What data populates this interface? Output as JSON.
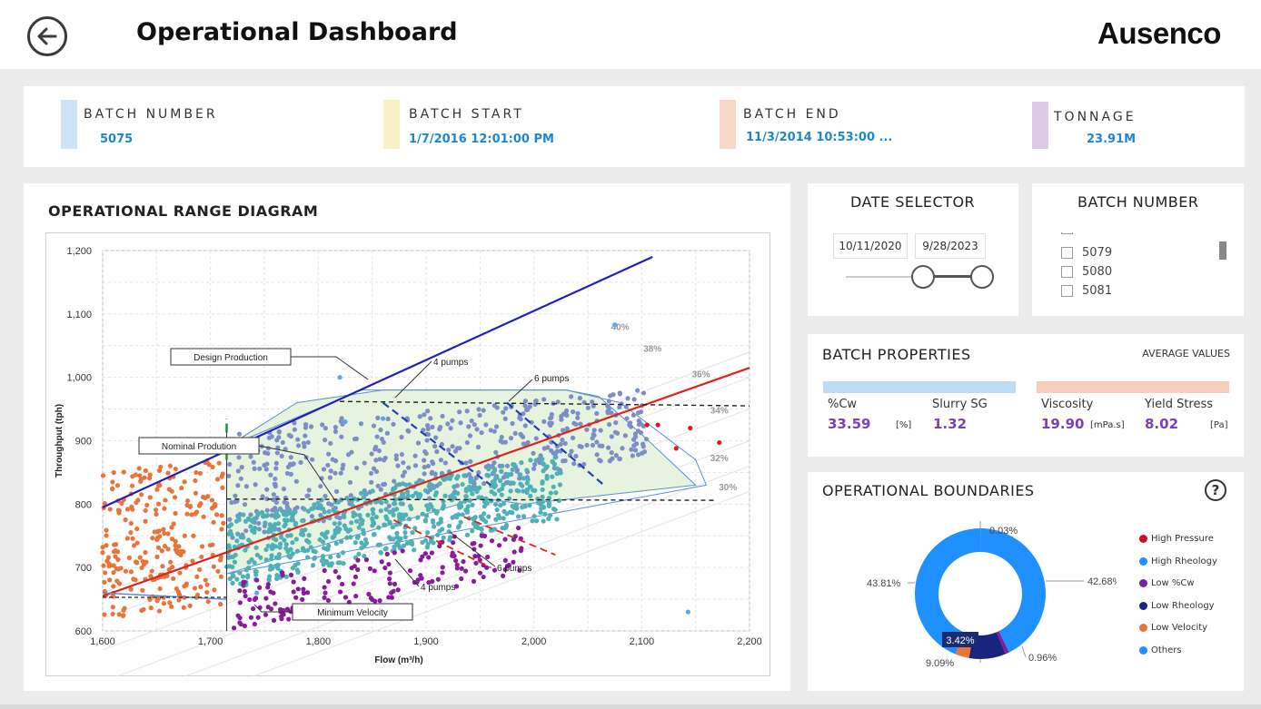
{
  "header": {
    "title": "Operational Dashboard",
    "logo_text": "Ausenco"
  },
  "kpis": [
    {
      "label": "BATCH NUMBER",
      "value": "5075",
      "color": "#cfe3f7"
    },
    {
      "label": "BATCH START",
      "value": "1/7/2016 12:01:00 PM",
      "color": "#f7efc6"
    },
    {
      "label": "BATCH END",
      "value": "11/3/2014 10:53:00 ...",
      "color": "#f7d9cc"
    },
    {
      "label": "TONNAGE",
      "value": "23.91M",
      "color": "#ddc9ea"
    }
  ],
  "chart": {
    "title": "OPERATIONAL RANGE DIAGRAM"
  },
  "chart_data": {
    "type": "scatter",
    "xlabel": "Flow (m³/h)",
    "ylabel": "Throughput (tph)",
    "xlim": [
      1600,
      2200
    ],
    "ylim": [
      600,
      1200
    ],
    "xticks": [
      "1,600",
      "1,700",
      "1,800",
      "1,900",
      "2,000",
      "2,100",
      "2,200"
    ],
    "yticks": [
      "600",
      "700",
      "800",
      "900",
      "1,000",
      "1,100",
      "1,200"
    ],
    "grid": true,
    "annotations": [
      "Design Production",
      "Nominal Prodution",
      "Minimum Velocity",
      "4 pumps",
      "6 pumps",
      "6 pumps",
      "4 pumps"
    ],
    "concentration_labels": [
      "40%",
      "38%",
      "36%",
      "34%",
      "32%",
      "30%"
    ],
    "colors": {
      "orange": "#e8743b",
      "steel": "#7b8ec8",
      "teal": "#4fb0b8",
      "purple": "#8a1a9e",
      "red": "#d81b2a",
      "lightblue": "#5aa9e6"
    }
  },
  "date_selector": {
    "title": "DATE SELECTOR",
    "start": "10/11/2020",
    "end": "9/28/2023"
  },
  "batch_selector": {
    "title": "BATCH NUMBER",
    "items": [
      "5079",
      "5080",
      "5081"
    ]
  },
  "batch_properties": {
    "title": "BATCH PROPERTIES",
    "subtitle": "AVERAGE VALUES",
    "props": [
      {
        "label": "%Cw",
        "value": "33.59",
        "unit": "[%]"
      },
      {
        "label": "Slurry SG",
        "value": "1.32",
        "unit": ""
      },
      {
        "label": "Viscosity",
        "value": "19.90",
        "unit": "[mPa.s]"
      },
      {
        "label": "Yield Stress",
        "value": "8.02",
        "unit": "[Pa]"
      }
    ]
  },
  "operational_boundaries": {
    "title": "OPERATIONAL BOUNDARIES",
    "donut": [
      {
        "name": "High Pressure",
        "value": 0.03,
        "label": "0.03%",
        "color": "#c8102e"
      },
      {
        "name": "High Rheology",
        "value": 42.68,
        "label": "42.68%",
        "color": "#1e90ff"
      },
      {
        "name": "Low %Cw",
        "value": 0.96,
        "label": "0.96%",
        "color": "#7b1fa2"
      },
      {
        "name": "Low Rheology",
        "value": 9.09,
        "label": "9.09%",
        "color": "#1a237e"
      },
      {
        "name": "Low Velocity",
        "value": 3.42,
        "label": "3.42%",
        "color": "#e8743b"
      },
      {
        "name": "Others",
        "value": 43.81,
        "label": "43.81%",
        "color": "#1e90ff"
      }
    ]
  }
}
